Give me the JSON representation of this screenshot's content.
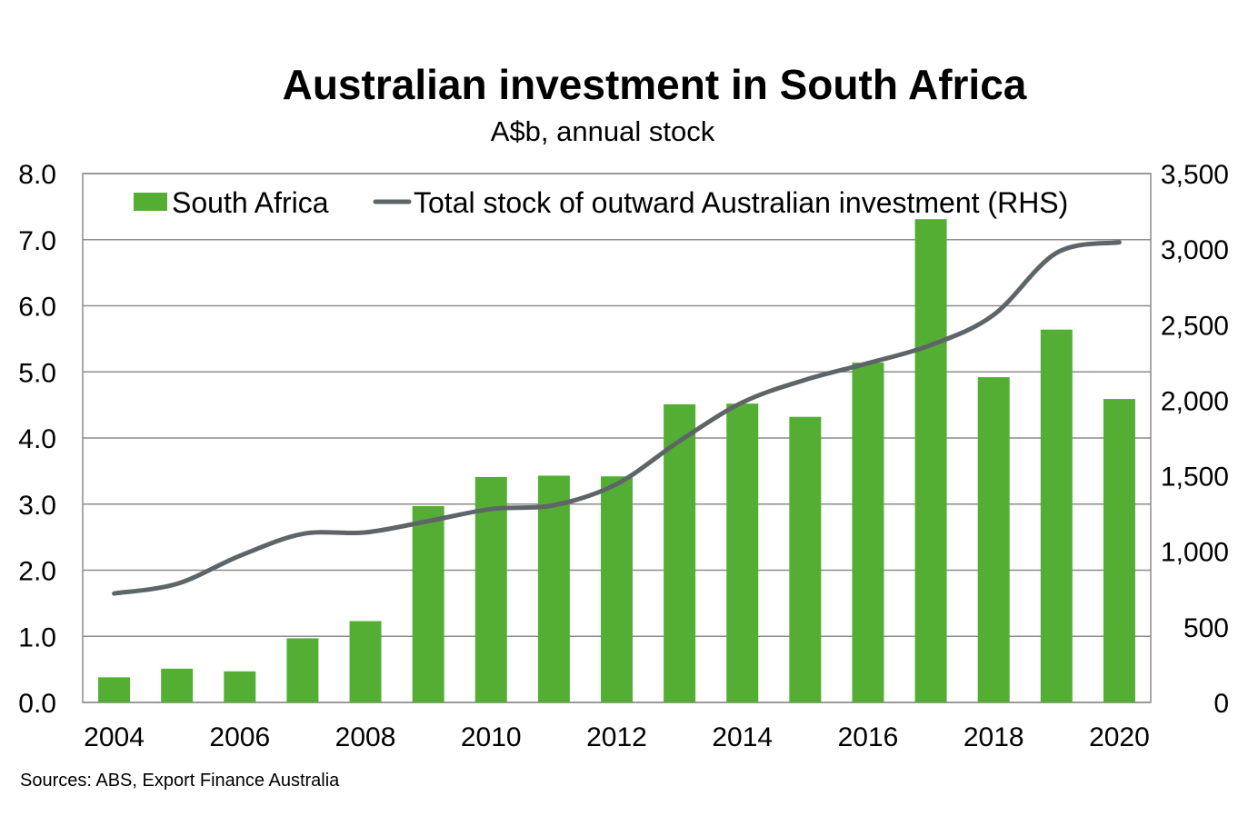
{
  "chart_data": {
    "type": "bar",
    "title": "Australian investment in South Africa",
    "subtitle": "A$b, annual stock",
    "source": "Sources: ABS, Export Finance Australia",
    "x": [
      2004,
      2005,
      2006,
      2007,
      2008,
      2009,
      2010,
      2011,
      2012,
      2013,
      2014,
      2015,
      2016,
      2017,
      2018,
      2019,
      2020
    ],
    "x_tick_labels": [
      "2004",
      "2006",
      "2008",
      "2010",
      "2012",
      "2014",
      "2016",
      "2018",
      "2020"
    ],
    "ylim_left": [
      0,
      8
    ],
    "y_left_ticks": [
      "0.0",
      "1.0",
      "2.0",
      "3.0",
      "4.0",
      "5.0",
      "6.0",
      "7.0",
      "8.0"
    ],
    "ylim_right": [
      0,
      3500
    ],
    "y_right_ticks": [
      "0",
      "500",
      "1,000",
      "1,500",
      "2,000",
      "2,500",
      "3,000",
      "3,500"
    ],
    "grid": "horizontal",
    "legend_position": "top",
    "series": [
      {
        "name": "South Africa",
        "type": "bar",
        "axis": "left",
        "color": "#55ae34",
        "values": [
          0.38,
          0.51,
          0.47,
          0.97,
          1.23,
          2.97,
          3.41,
          3.43,
          3.42,
          4.51,
          4.52,
          4.32,
          5.14,
          7.31,
          4.92,
          5.64,
          4.59
        ]
      },
      {
        "name": "Total stock of outward Australian investment (RHS)",
        "type": "line",
        "axis": "right",
        "color": "#5e6568",
        "values": [
          721,
          785,
          970,
          1115,
          1125,
          1200,
          1280,
          1305,
          1445,
          1730,
          1985,
          2135,
          2245,
          2365,
          2565,
          2975,
          3045
        ]
      }
    ]
  }
}
